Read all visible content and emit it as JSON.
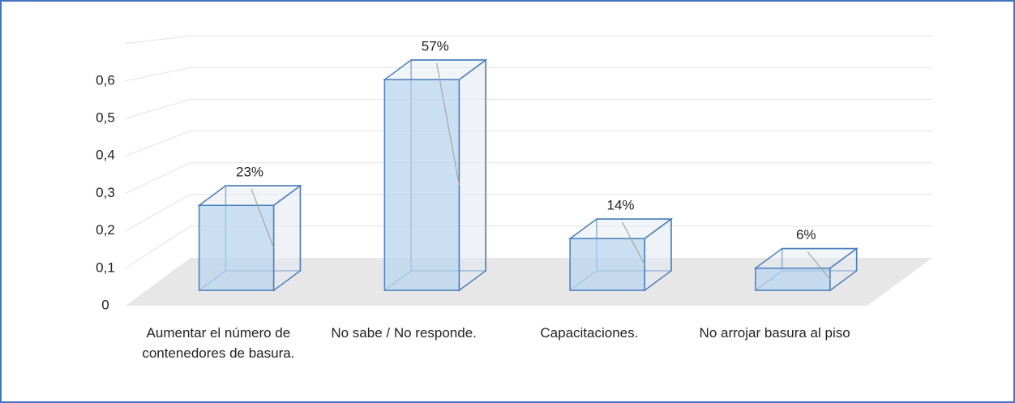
{
  "chart_data": {
    "type": "bar3d",
    "categories": [
      "Aumentar el número de contenedores de basura.",
      "No sabe / No responde.",
      "Capacitaciones.",
      "No arrojar basura al piso"
    ],
    "values": [
      0.23,
      0.57,
      0.14,
      0.06
    ],
    "value_labels": [
      "23%",
      "57%",
      "14%",
      "6%"
    ],
    "color": "#bdd7ee",
    "ylim": [
      0,
      0.7
    ],
    "yticks": [
      0,
      {
        "value": 0.1,
        "label": "0,1"
      },
      {
        "value": 0.2,
        "label": "0,2"
      },
      {
        "value": 0.3,
        "label": "0,3"
      },
      {
        "value": 0.4,
        "label": "0,4"
      },
      {
        "value": 0.5,
        "label": "0,5"
      },
      {
        "value": 0.6,
        "label": "0,6"
      }
    ],
    "grid": true
  }
}
